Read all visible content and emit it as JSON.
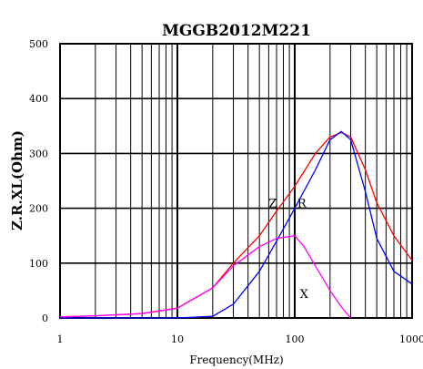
{
  "chart_data": {
    "type": "line",
    "title": "MGGB2012M221",
    "xlabel": "Frequency(MHz)",
    "ylabel": "Z.R.XL(Ohm)",
    "x_scale": "log",
    "xlim": [
      1,
      1000
    ],
    "ylim": [
      0,
      500
    ],
    "x_ticks": [
      "1",
      "10",
      "100",
      "1000"
    ],
    "y_ticks": [
      "0",
      "100",
      "200",
      "300",
      "400",
      "500"
    ],
    "grid": true,
    "legend": "none",
    "series": [
      {
        "name": "Z",
        "color": "#ff0000",
        "x": [
          1,
          2,
          5,
          10,
          20,
          30,
          50,
          70,
          100,
          150,
          200,
          250,
          300,
          400,
          500,
          700,
          1000
        ],
        "y": [
          2,
          4,
          8,
          18,
          55,
          100,
          150,
          195,
          240,
          300,
          330,
          338,
          330,
          270,
          210,
          150,
          105
        ]
      },
      {
        "name": "R",
        "color": "#0000ff",
        "x": [
          1,
          10,
          20,
          30,
          50,
          70,
          100,
          150,
          200,
          250,
          300,
          400,
          500,
          700,
          1000
        ],
        "y": [
          0,
          0,
          3,
          25,
          85,
          140,
          200,
          270,
          325,
          340,
          325,
          230,
          145,
          85,
          62
        ]
      },
      {
        "name": "X",
        "color": "#ff00ff",
        "x": [
          1,
          2,
          5,
          10,
          20,
          30,
          50,
          70,
          100,
          120,
          150,
          200,
          250,
          300
        ],
        "y": [
          2,
          4,
          8,
          18,
          55,
          95,
          130,
          145,
          150,
          130,
          95,
          50,
          20,
          0
        ]
      }
    ],
    "annotations": [
      {
        "text": "Z",
        "x": 65,
        "y": 210
      },
      {
        "text": "R",
        "x": 115,
        "y": 210
      },
      {
        "text": "X",
        "x": 120,
        "y": 45
      }
    ]
  }
}
